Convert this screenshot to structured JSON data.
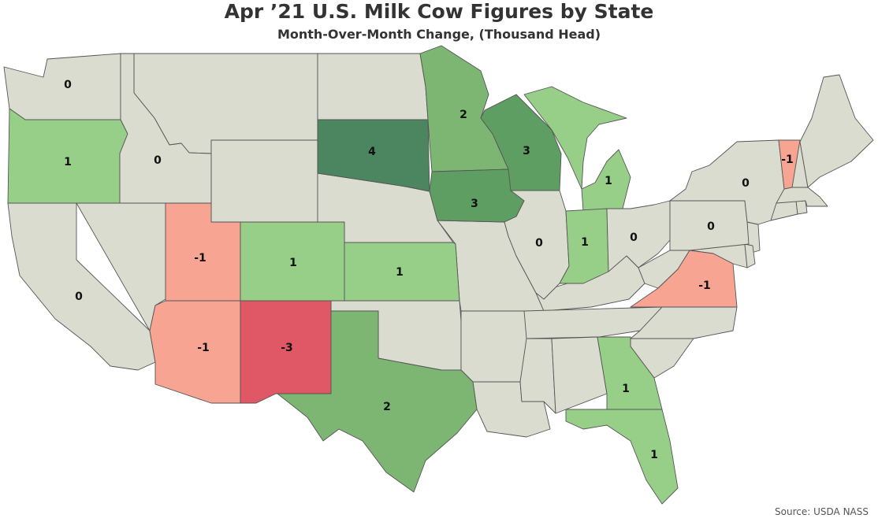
{
  "title": "Apr ’21 U.S. Milk Cow Figures by State",
  "subtitle": "Month-Over-Month Change, (Thousand Head)",
  "source": "Source: USDA NASS",
  "colors": {
    "neutral": "#d9dccf",
    "green_light": "#98cf88",
    "green_mid": "#7db572",
    "green_dark": "#5f9e62",
    "green_darkest": "#4c8660",
    "red_light": "#f7a592",
    "red_dark": "#e05766",
    "border": "#555555"
  },
  "states": [
    {
      "id": "WA",
      "label": "0"
    },
    {
      "id": "OR",
      "label": "1"
    },
    {
      "id": "ID",
      "label": "0"
    },
    {
      "id": "CA",
      "label": "0"
    },
    {
      "id": "UT",
      "label": "-1"
    },
    {
      "id": "AZ",
      "label": "-1"
    },
    {
      "id": "NM",
      "label": "-3"
    },
    {
      "id": "CO",
      "label": "1"
    },
    {
      "id": "SD",
      "label": "4"
    },
    {
      "id": "KS",
      "label": "1"
    },
    {
      "id": "TX",
      "label": "2"
    },
    {
      "id": "MN",
      "label": "2"
    },
    {
      "id": "IA",
      "label": "3"
    },
    {
      "id": "WI",
      "label": "3"
    },
    {
      "id": "IL",
      "label": "0"
    },
    {
      "id": "MI",
      "label": "1"
    },
    {
      "id": "IN",
      "label": "1"
    },
    {
      "id": "OH",
      "label": "0"
    },
    {
      "id": "PA",
      "label": "0"
    },
    {
      "id": "NY",
      "label": "0"
    },
    {
      "id": "VT",
      "label": "-1"
    },
    {
      "id": "VA",
      "label": "-1"
    },
    {
      "id": "GA",
      "label": "1"
    },
    {
      "id": "FL",
      "label": "1"
    }
  ]
}
